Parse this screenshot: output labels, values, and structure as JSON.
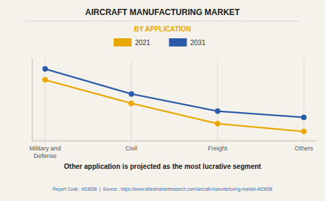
{
  "chart_data": {
    "type": "line",
    "title": "AIRCRAFT MANUFACTURING MARKET",
    "subtitle": "BY APPLICATION",
    "categories": [
      "Military and\nDefense",
      "Civil",
      "Freight",
      "Others"
    ],
    "series": [
      {
        "name": "2021",
        "color": "#E8A800",
        "values": [
          0.78,
          0.48,
          0.22,
          0.12
        ]
      },
      {
        "name": "2031",
        "color": "#2B5BA8",
        "values": [
          0.92,
          0.6,
          0.38,
          0.3
        ]
      }
    ],
    "ylim": [
      0.0,
      1.05
    ],
    "grid": true,
    "marker": "circle",
    "tick_labels": "x",
    "footnote": "Other application is projected as the most lucrative segment",
    "source": "Report Code : A53658  |  Source : https://www.alliedmarketresearch.com/aircraft-manufacturing-market-A53658"
  }
}
